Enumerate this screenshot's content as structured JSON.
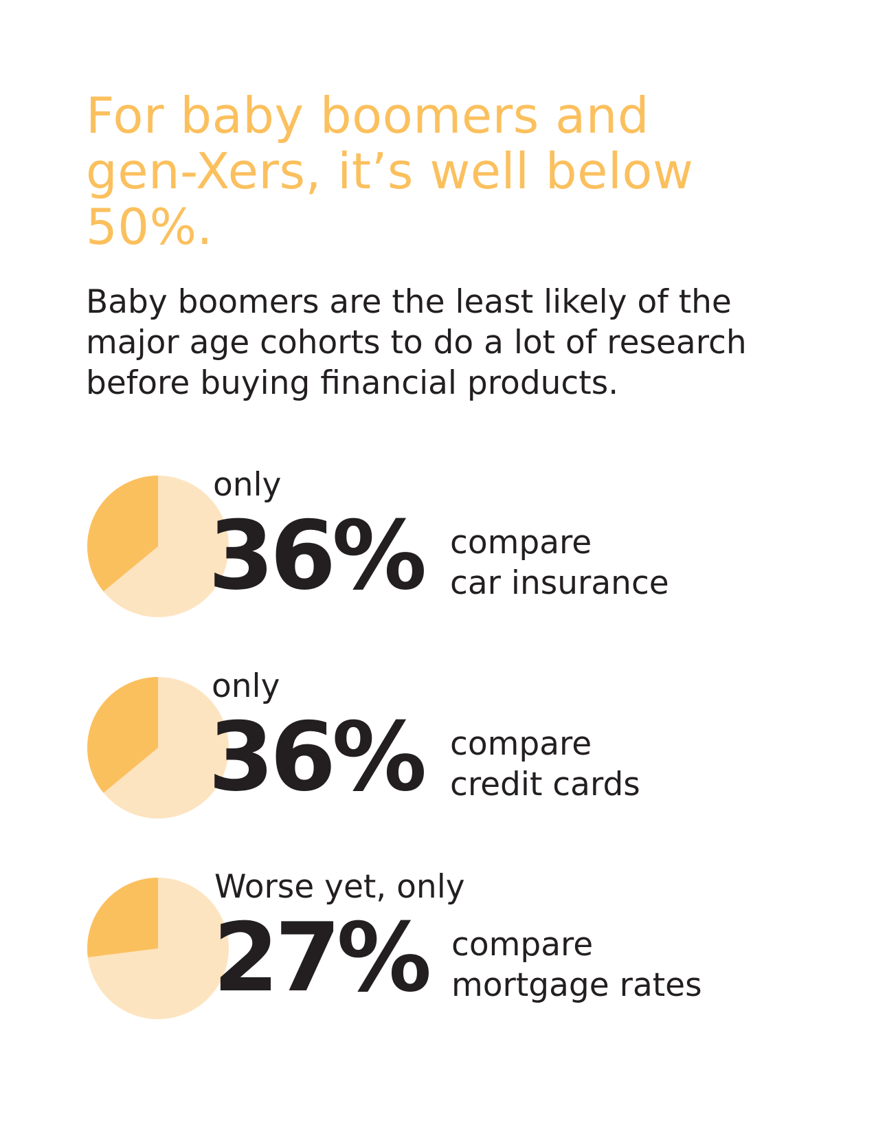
{
  "headline": "For baby boomers and gen-Xers, it’s well below 50%.",
  "intro": "Baby boomers are the least likely of the major age cohorts to do a lot of research before buying financial products.",
  "colors": {
    "accent": "#fbc05e",
    "pie_rest": "#fde4c0",
    "text": "#231f20"
  },
  "stats": [
    {
      "pre": "only",
      "value": "36%",
      "line1": "compare",
      "line2": "car insurance"
    },
    {
      "pre": "only",
      "value": "36%",
      "line1": "compare",
      "line2": "credit cards"
    },
    {
      "pre": "Worse yet, only",
      "value": "27%",
      "line1": "compare",
      "line2": "mortgage rates"
    }
  ],
  "chart_data": [
    {
      "type": "pie",
      "categories": [
        "compare car insurance",
        "other"
      ],
      "values": [
        36,
        64
      ]
    },
    {
      "type": "pie",
      "categories": [
        "compare credit cards",
        "other"
      ],
      "values": [
        36,
        64
      ]
    },
    {
      "type": "pie",
      "categories": [
        "compare mortgage rates",
        "other"
      ],
      "values": [
        27,
        73
      ]
    }
  ]
}
